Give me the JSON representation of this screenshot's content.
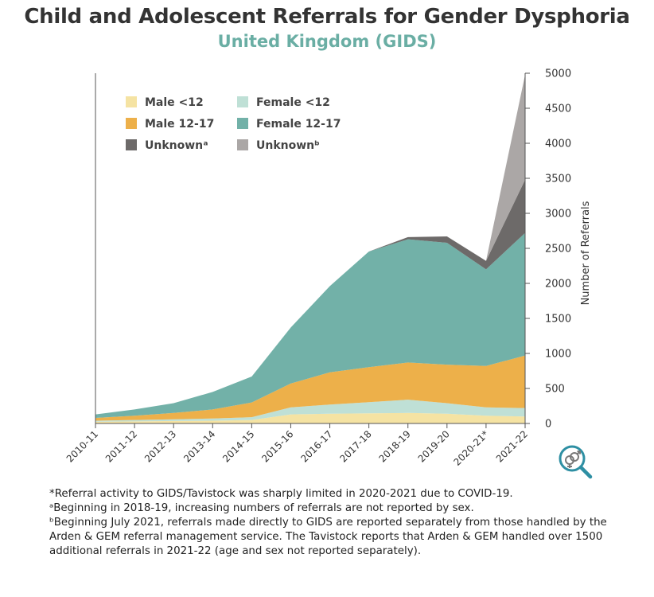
{
  "title": "Child and Adolescent Referrals for Gender Dysphoria",
  "subtitle": "United Kingdom (GIDS)",
  "chart_data": {
    "type": "area",
    "stacked": true,
    "categories": [
      "2010-11",
      "2011-12",
      "2012-13",
      "2013-14",
      "2014-15",
      "2015-16",
      "2016-17",
      "2017-18",
      "2018-19",
      "2019-20",
      "2020-21*",
      "2021-22"
    ],
    "series": [
      {
        "name": "Male <12",
        "color": "#f5e3a3",
        "values": [
          25,
          30,
          35,
          40,
          50,
          130,
          140,
          145,
          150,
          140,
          110,
          100
        ]
      },
      {
        "name": "Female <12",
        "color": "#bfe0d6",
        "values": [
          15,
          20,
          25,
          30,
          40,
          100,
          130,
          160,
          190,
          150,
          120,
          120
        ]
      },
      {
        "name": "Male 12-17",
        "color": "#edb04a",
        "values": [
          40,
          60,
          90,
          130,
          210,
          340,
          460,
          500,
          530,
          550,
          590,
          750
        ]
      },
      {
        "name": "Female 12-17",
        "color": "#72b1a8",
        "values": [
          50,
          90,
          140,
          250,
          370,
          800,
          1230,
          1650,
          1760,
          1740,
          1380,
          1750
        ]
      },
      {
        "name": "Unknownᵃ",
        "color": "#6d6a69",
        "values": [
          0,
          0,
          0,
          0,
          0,
          0,
          0,
          0,
          30,
          90,
          120,
          760
        ]
      },
      {
        "name": "Unknownᵇ",
        "color": "#aba7a6",
        "values": [
          0,
          0,
          0,
          0,
          0,
          0,
          0,
          0,
          0,
          0,
          0,
          1500
        ]
      }
    ],
    "ylabel": "Number of Referrals",
    "ylim": [
      0,
      5000
    ],
    "yticks": [
      0,
      500,
      1000,
      1500,
      2000,
      2500,
      3000,
      3500,
      4000,
      4500,
      5000
    ],
    "grid": false,
    "legend_position": "top-left",
    "y_axis_side": "right"
  },
  "icon": "gender-search-icon",
  "footnotes": [
    "*Referral activity to GIDS/Tavistock was sharply limited in 2020-2021 due to COVID-19.",
    "ᵃBeginning in 2018-19, increasing numbers of referrals are not reported by sex.",
    "ᵇBeginning July 2021, referrals made directly to GIDS are reported separately from those handled by the Arden & GEM referral management service. The Tavistock reports that Arden & GEM handled over 1500 additional referrals in 2021-22 (age and sex not reported separately)."
  ]
}
